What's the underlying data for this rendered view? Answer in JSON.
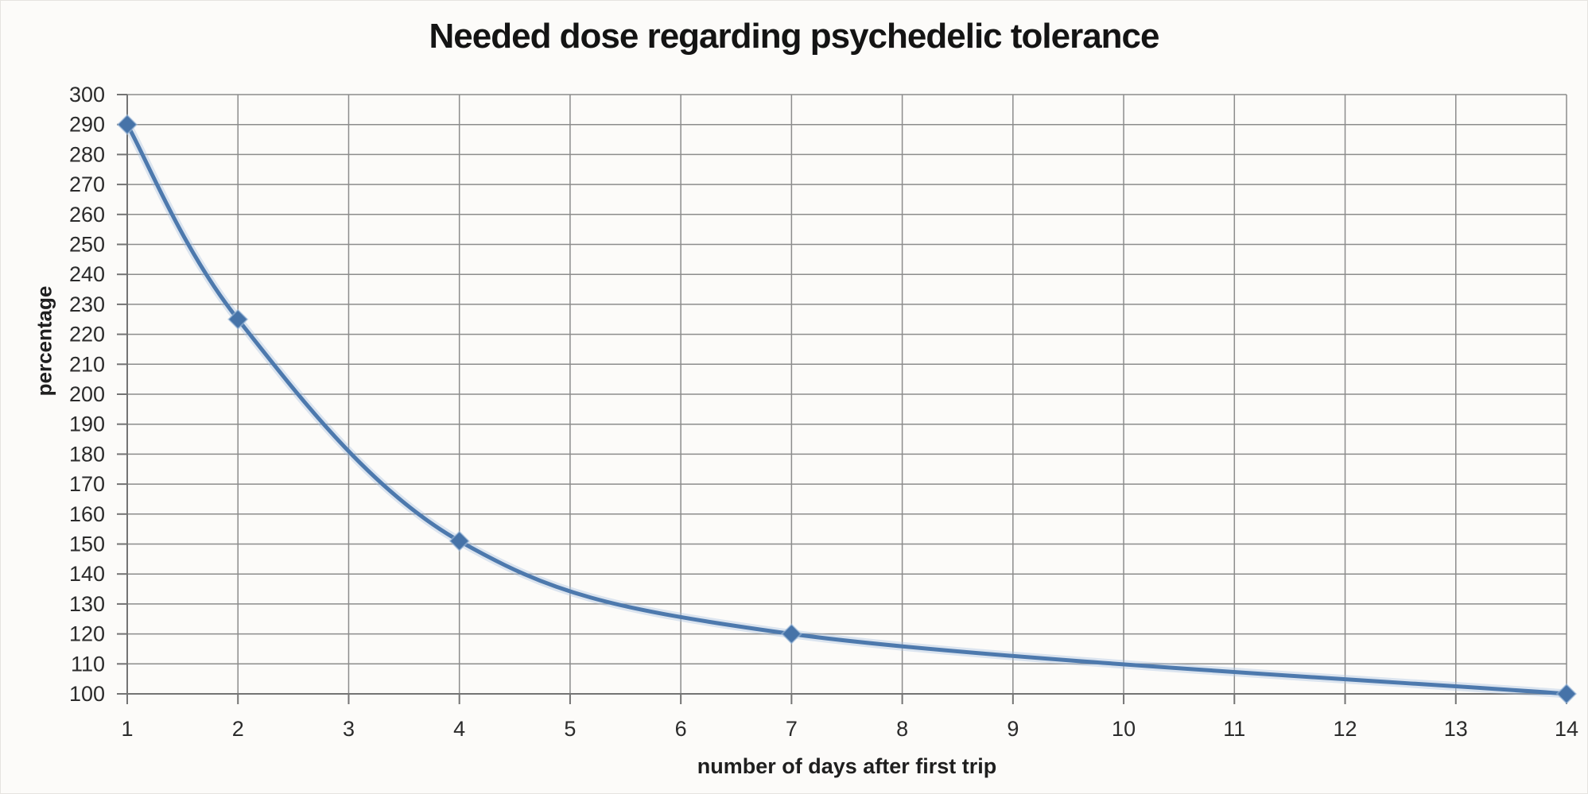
{
  "page": {
    "background_color": "#fcfbf9"
  },
  "chart_data": {
    "type": "line",
    "title": "Needed dose regarding psychedelic tolerance",
    "xlabel": "number of days after first trip",
    "ylabel": "percentage",
    "x": [
      1,
      2,
      4,
      7,
      14
    ],
    "y": [
      290,
      225,
      151,
      120,
      100
    ],
    "xlim": [
      1,
      14
    ],
    "ylim": [
      100,
      300
    ],
    "x_ticks": [
      1,
      2,
      3,
      4,
      5,
      6,
      7,
      8,
      9,
      10,
      11,
      12,
      13,
      14
    ],
    "y_ticks": [
      100,
      110,
      120,
      130,
      140,
      150,
      160,
      170,
      180,
      190,
      200,
      210,
      220,
      230,
      240,
      250,
      260,
      270,
      280,
      290,
      300
    ],
    "grid": "both",
    "legend": "none",
    "smooth": true,
    "marker": "diamond",
    "line_color": "#4d79ad",
    "line_halo_color": "#a9c4e0",
    "marker_color": "#4673a8",
    "gridline_color": "#8c8c8c",
    "axis_color": "#747474",
    "tick_label_color": "#2b2b2b",
    "title_color": "#141414"
  }
}
